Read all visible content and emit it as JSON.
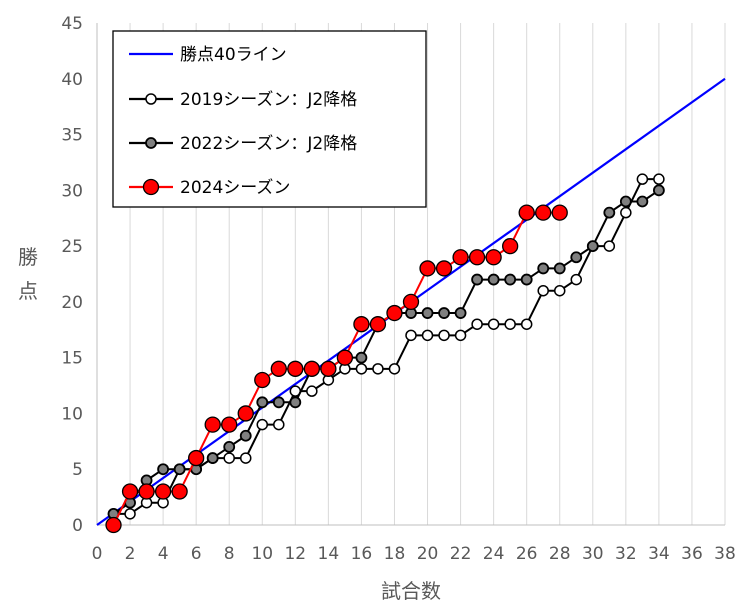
{
  "chart_data": {
    "type": "line",
    "xlabel": "試合数",
    "ylabel": "勝点",
    "xlim": [
      0,
      38
    ],
    "ylim": [
      0,
      45
    ],
    "x_ticks": [
      0,
      2,
      4,
      6,
      8,
      10,
      12,
      14,
      16,
      18,
      20,
      22,
      24,
      26,
      28,
      30,
      32,
      34,
      36,
      38
    ],
    "y_ticks": [
      0,
      5,
      10,
      15,
      20,
      25,
      30,
      35,
      40,
      45
    ],
    "grid": "vertical",
    "legend": "top-left",
    "series": [
      {
        "name": "勝点40ライン",
        "color": "#0000ff",
        "marker": "none",
        "x": [
          0,
          38
        ],
        "y": [
          0,
          40
        ]
      },
      {
        "name": "2019シーズン：J2降格",
        "color": "#000000",
        "marker": "open-circle",
        "x": [
          1,
          2,
          3,
          4,
          5,
          6,
          7,
          8,
          9,
          10,
          11,
          12,
          13,
          14,
          15,
          16,
          17,
          18,
          19,
          20,
          21,
          22,
          23,
          24,
          25,
          26,
          27,
          28,
          29,
          30,
          31,
          32,
          33,
          34
        ],
        "y": [
          1,
          1,
          2,
          2,
          5,
          5,
          6,
          6,
          6,
          9,
          9,
          12,
          12,
          13,
          14,
          14,
          14,
          14,
          17,
          17,
          17,
          17,
          18,
          18,
          18,
          18,
          21,
          21,
          22,
          25,
          25,
          28,
          31,
          31
        ]
      },
      {
        "name": "2022シーズン：J2降格",
        "color": "#000000",
        "marker": "gray-circle",
        "x": [
          1,
          2,
          3,
          4,
          5,
          6,
          7,
          8,
          9,
          10,
          11,
          12,
          13,
          14,
          15,
          16,
          17,
          18,
          19,
          20,
          21,
          22,
          23,
          24,
          25,
          26,
          27,
          28,
          29,
          30,
          31,
          32,
          33,
          34
        ],
        "y": [
          1,
          2,
          4,
          5,
          5,
          5,
          6,
          7,
          8,
          11,
          11,
          11,
          14,
          14,
          15,
          15,
          18,
          19,
          19,
          19,
          19,
          19,
          22,
          22,
          22,
          22,
          23,
          23,
          24,
          25,
          28,
          29,
          29,
          30
        ]
      },
      {
        "name": "2024シーズン",
        "color": "#ff0000",
        "marker": "red-circle",
        "x": [
          1,
          2,
          3,
          4,
          5,
          6,
          7,
          8,
          9,
          10,
          11,
          12,
          13,
          14,
          15,
          16,
          17,
          18,
          19,
          20,
          21,
          22,
          23,
          24,
          25,
          26,
          27,
          28
        ],
        "y": [
          0,
          3,
          3,
          3,
          3,
          6,
          9,
          9,
          10,
          13,
          14,
          14,
          14,
          14,
          15,
          18,
          18,
          19,
          20,
          23,
          23,
          24,
          24,
          24,
          25,
          28,
          28,
          28
        ]
      }
    ]
  }
}
